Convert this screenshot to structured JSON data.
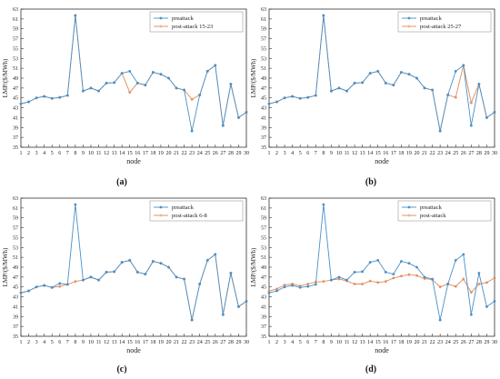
{
  "chart_data": [
    {
      "type": "line",
      "panel_label": "(a)",
      "xlabel": "node",
      "ylabel": "LMP/($/MWh)",
      "xlim": [
        1,
        30
      ],
      "ylim": [
        35,
        63
      ],
      "x_ticks": [
        1,
        2,
        3,
        4,
        5,
        6,
        7,
        8,
        9,
        10,
        11,
        12,
        13,
        14,
        15,
        16,
        17,
        18,
        19,
        20,
        21,
        22,
        23,
        24,
        25,
        26,
        27,
        28,
        29,
        30
      ],
      "y_ticks": [
        35,
        37,
        39,
        41,
        43,
        45,
        47,
        49,
        51,
        53,
        55,
        57,
        59,
        61,
        63
      ],
      "legend_position": "top-right",
      "colors": {
        "preattack": "#4a90c8",
        "post": "#e08a5a"
      },
      "x": [
        1,
        2,
        3,
        4,
        5,
        6,
        7,
        8,
        9,
        10,
        11,
        12,
        13,
        14,
        15,
        16,
        17,
        18,
        19,
        20,
        21,
        22,
        23,
        24,
        25,
        26,
        27,
        28,
        29,
        30
      ],
      "series": [
        {
          "name": "preattack",
          "values": [
            43.8,
            44.2,
            45.0,
            45.3,
            44.9,
            45.1,
            45.5,
            61.7,
            46.4,
            47.0,
            46.4,
            48.0,
            48.1,
            50.0,
            50.4,
            48.0,
            47.6,
            50.2,
            49.8,
            49.0,
            47.0,
            46.6,
            38.3,
            45.6,
            50.4,
            51.6,
            39.4,
            47.8,
            41.0,
            42.1
          ]
        },
        {
          "name": "post-attack 15-23",
          "values": [
            43.8,
            44.2,
            45.0,
            45.3,
            44.9,
            45.1,
            45.5,
            61.7,
            46.4,
            47.0,
            46.4,
            48.0,
            48.1,
            50.0,
            46.1,
            48.0,
            47.6,
            50.2,
            49.8,
            49.0,
            47.0,
            46.6,
            44.7,
            45.6,
            50.4,
            51.6,
            39.4,
            47.8,
            41.0,
            42.1
          ]
        }
      ]
    },
    {
      "type": "line",
      "panel_label": "(b)",
      "xlabel": "node",
      "ylabel": "LMP/($/MWh)",
      "xlim": [
        1,
        30
      ],
      "ylim": [
        35,
        63
      ],
      "x_ticks": [
        1,
        2,
        3,
        4,
        5,
        6,
        7,
        8,
        9,
        10,
        11,
        12,
        13,
        14,
        15,
        16,
        17,
        18,
        19,
        20,
        21,
        22,
        23,
        24,
        25,
        26,
        27,
        28,
        29,
        30
      ],
      "y_ticks": [
        35,
        37,
        39,
        41,
        43,
        45,
        47,
        49,
        51,
        53,
        55,
        57,
        59,
        61,
        63
      ],
      "legend_position": "top-right",
      "colors": {
        "preattack": "#4a90c8",
        "post": "#e08a5a"
      },
      "x": [
        1,
        2,
        3,
        4,
        5,
        6,
        7,
        8,
        9,
        10,
        11,
        12,
        13,
        14,
        15,
        16,
        17,
        18,
        19,
        20,
        21,
        22,
        23,
        24,
        25,
        26,
        27,
        28,
        29,
        30
      ],
      "series": [
        {
          "name": "preattack",
          "values": [
            43.8,
            44.2,
            45.0,
            45.3,
            44.9,
            45.1,
            45.5,
            61.7,
            46.4,
            47.0,
            46.4,
            48.0,
            48.1,
            50.0,
            50.4,
            48.0,
            47.6,
            50.2,
            49.8,
            49.0,
            47.0,
            46.6,
            38.3,
            45.6,
            50.4,
            51.6,
            39.4,
            47.8,
            41.0,
            42.1
          ]
        },
        {
          "name": "post-attack 25-27",
          "values": [
            43.8,
            44.2,
            45.0,
            45.3,
            44.9,
            45.1,
            45.5,
            61.7,
            46.4,
            47.0,
            46.4,
            48.0,
            48.1,
            50.0,
            50.4,
            48.0,
            47.6,
            50.2,
            49.8,
            49.0,
            47.0,
            46.6,
            38.3,
            45.6,
            45.1,
            51.6,
            44.0,
            47.8,
            41.0,
            42.1
          ]
        }
      ]
    },
    {
      "type": "line",
      "panel_label": "(c)",
      "xlabel": "node",
      "ylabel": "LMP/($/MWh)",
      "xlim": [
        1,
        30
      ],
      "ylim": [
        35,
        63
      ],
      "x_ticks": [
        1,
        2,
        3,
        4,
        5,
        6,
        7,
        8,
        9,
        10,
        11,
        12,
        13,
        14,
        15,
        16,
        17,
        18,
        19,
        20,
        21,
        22,
        23,
        24,
        25,
        26,
        27,
        28,
        29,
        30
      ],
      "y_ticks": [
        35,
        37,
        39,
        41,
        43,
        45,
        47,
        49,
        51,
        53,
        55,
        57,
        59,
        61,
        63
      ],
      "legend_position": "top-right",
      "colors": {
        "preattack": "#4a90c8",
        "post": "#e08a5a"
      },
      "x": [
        1,
        2,
        3,
        4,
        5,
        6,
        7,
        8,
        9,
        10,
        11,
        12,
        13,
        14,
        15,
        16,
        17,
        18,
        19,
        20,
        21,
        22,
        23,
        24,
        25,
        26,
        27,
        28,
        29,
        30
      ],
      "series": [
        {
          "name": "preattack",
          "values": [
            43.8,
            44.2,
            45.0,
            45.3,
            44.9,
            45.7,
            45.5,
            61.7,
            46.4,
            47.0,
            46.4,
            48.0,
            48.1,
            50.0,
            50.4,
            48.0,
            47.6,
            50.2,
            49.8,
            49.0,
            47.0,
            46.6,
            38.3,
            45.6,
            50.4,
            51.6,
            39.4,
            47.8,
            41.0,
            42.1
          ]
        },
        {
          "name": "post-attack 6-8",
          "values": [
            43.8,
            44.2,
            45.0,
            45.3,
            44.9,
            45.1,
            45.5,
            46.1,
            46.4,
            47.0,
            46.4,
            48.0,
            48.1,
            50.0,
            50.4,
            48.0,
            47.6,
            50.2,
            49.8,
            49.0,
            47.0,
            46.6,
            38.3,
            45.6,
            50.4,
            51.6,
            39.4,
            47.8,
            41.0,
            42.1
          ]
        }
      ]
    },
    {
      "type": "line",
      "panel_label": "(d)",
      "xlabel": "node",
      "ylabel": "LMP/($/MWh)",
      "xlim": [
        1,
        30
      ],
      "ylim": [
        35,
        63
      ],
      "x_ticks": [
        1,
        2,
        3,
        4,
        5,
        6,
        7,
        8,
        9,
        10,
        11,
        12,
        13,
        14,
        15,
        16,
        17,
        18,
        19,
        20,
        21,
        22,
        23,
        24,
        25,
        26,
        27,
        28,
        29,
        30
      ],
      "y_ticks": [
        35,
        37,
        39,
        41,
        43,
        45,
        47,
        49,
        51,
        53,
        55,
        57,
        59,
        61,
        63
      ],
      "legend_position": "top-right",
      "colors": {
        "preattack": "#4a90c8",
        "post": "#e08a5a"
      },
      "x": [
        1,
        2,
        3,
        4,
        5,
        6,
        7,
        8,
        9,
        10,
        11,
        12,
        13,
        14,
        15,
        16,
        17,
        18,
        19,
        20,
        21,
        22,
        23,
        24,
        25,
        26,
        27,
        28,
        29,
        30
      ],
      "series": [
        {
          "name": "preattack",
          "values": [
            43.8,
            44.2,
            45.0,
            45.3,
            44.9,
            45.1,
            45.5,
            61.7,
            46.4,
            47.0,
            46.4,
            48.0,
            48.1,
            50.0,
            50.4,
            48.0,
            47.6,
            50.2,
            49.8,
            49.0,
            47.0,
            46.6,
            38.3,
            45.6,
            50.4,
            51.6,
            39.4,
            47.8,
            41.0,
            42.1
          ]
        },
        {
          "name": "post-attack",
          "values": [
            44.2,
            44.6,
            45.4,
            45.6,
            45.2,
            45.6,
            46.0,
            46.1,
            46.4,
            46.6,
            46.2,
            45.6,
            45.6,
            46.2,
            45.9,
            46.1,
            46.8,
            47.2,
            47.5,
            47.3,
            46.7,
            46.5,
            45.0,
            45.6,
            45.1,
            46.6,
            43.9,
            45.6,
            45.9,
            46.8
          ]
        }
      ]
    }
  ]
}
